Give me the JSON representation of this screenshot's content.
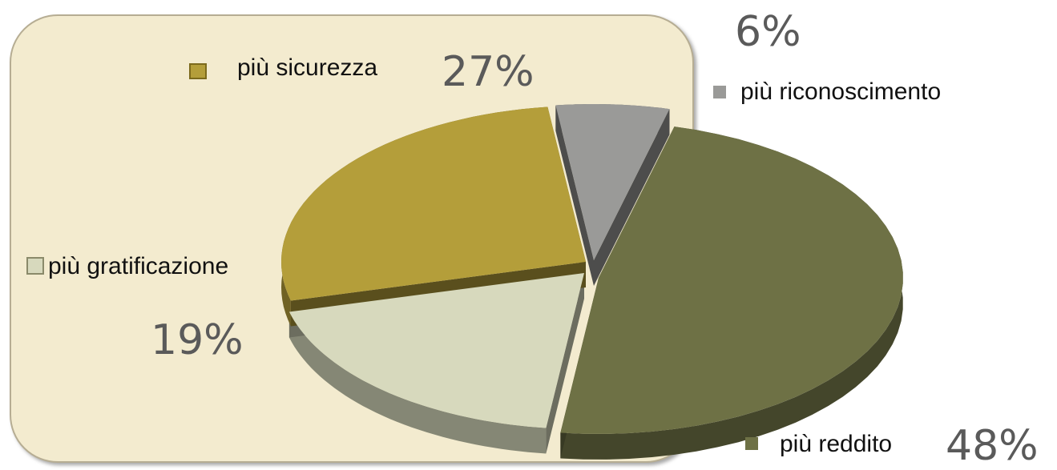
{
  "chart_data": {
    "type": "pie",
    "title": "",
    "legend_placement": "around-chart",
    "slices": [
      {
        "label": "più reddito",
        "value": 48,
        "pct_label": "48%",
        "color": "#6e7145"
      },
      {
        "label": "più gratificazione",
        "value": 19,
        "pct_label": "19%",
        "color": "#d7d9bd"
      },
      {
        "label": "più sicurezza",
        "value": 27,
        "pct_label": "27%",
        "color": "#b49e3a"
      },
      {
        "label": "più riconoscimento",
        "value": 6,
        "pct_label": "6%",
        "color": "#9a9a98"
      }
    ]
  }
}
